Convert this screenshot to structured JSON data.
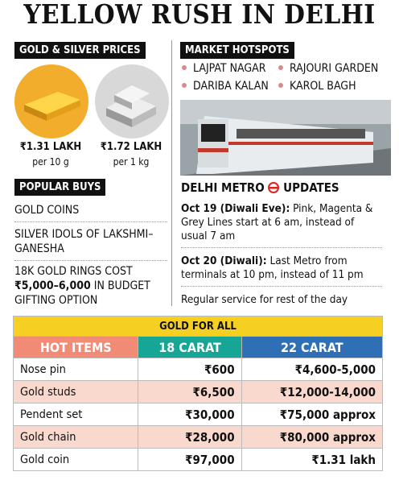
{
  "title": "YELLOW RUSH IN DELHI",
  "prices": {
    "heading": "GOLD & SILVER PRICES",
    "items": [
      {
        "price": "₹1.31 LAKH",
        "unit": "per 10 g"
      },
      {
        "price": "₹1.72 LAKH",
        "unit": "per 1 kg"
      }
    ]
  },
  "hotspots": {
    "heading": "MARKET HOTSPOTS",
    "rows": [
      [
        "LAJPAT NAGAR",
        "RAJOURI GARDEN"
      ],
      [
        "DARIBA KALAN",
        "KAROL BAGH"
      ]
    ]
  },
  "popular_buys": {
    "heading": "POPULAR BUYS",
    "items": [
      [
        "GOLD COINS"
      ],
      [
        "SILVER IDOLS OF LAKSHMI–GANESHA"
      ],
      [
        "18K GOLD RINGS COST",
        "₹5,000–6,000",
        "IN BUDGET GIFTING OPTION"
      ]
    ]
  },
  "metro": {
    "heading": [
      "DELHI METRO",
      "UPDATES"
    ],
    "updates": [
      {
        "date": "Oct 19 (Diwali Eve):",
        "text": "Pink, Magenta & Grey Lines start at 6 am, instead of usual 7 am"
      },
      {
        "date": "Oct 20 (Diwali):",
        "text": "Last Metro from terminals at 10 pm, instead of 11 pm"
      },
      {
        "text": "Regular service for rest of the day"
      }
    ]
  },
  "table": {
    "title": "GOLD FOR ALL",
    "columns": [
      "HOT ITEMS",
      "18 CARAT",
      "22 CARAT"
    ],
    "rows": [
      [
        "Nose pin",
        "₹600",
        "₹4,600-5,000"
      ],
      [
        "Gold studs",
        "₹6,500",
        "₹12,000-14,000"
      ],
      [
        "Pendent set",
        "₹30,000",
        "₹75,000 approx"
      ],
      [
        "Gold chain",
        "₹28,000",
        "₹80,000 approx"
      ],
      [
        "Gold coin",
        "₹97,000",
        "₹1.31 lakh"
      ]
    ]
  }
}
